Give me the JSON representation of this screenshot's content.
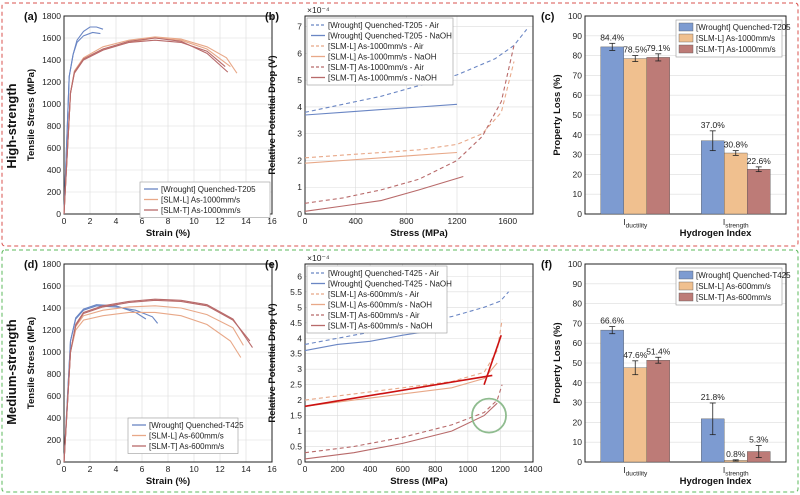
{
  "rows": [
    {
      "title": "High-strength",
      "frame_color": "#d9534f"
    },
    {
      "title": "Medium-strength",
      "frame_color": "#5cb85c"
    }
  ],
  "colors": {
    "wrought": "#6a86c4",
    "slm_l": "#e8a888",
    "slm_t": "#b86a6a",
    "wrought_bar": "#7d9bd1",
    "slm_l_bar": "#f0c08f",
    "slm_t_bar": "#bd7b77",
    "ppd_red": "#cc1111",
    "circle": "#8fbc8f"
  },
  "chart_data": [
    {
      "panel": "(a)",
      "type": "line",
      "xlabel": "Strain (%)",
      "ylabel": "Tensile Stress (MPa)",
      "xlim": [
        0,
        16
      ],
      "ylim": [
        0,
        1800
      ],
      "xticks": [
        "0",
        "2",
        "4",
        "6",
        "8",
        "10",
        "12",
        "14",
        "16"
      ],
      "yticks": [
        "0",
        "200",
        "400",
        "600",
        "800",
        "1000",
        "1200",
        "1400",
        "1600",
        "1800"
      ],
      "legend": [
        "[Wrought] Quenched-T205",
        "[SLM-L] As-1000mm/s",
        "[SLM-T] As-1000mm/s"
      ],
      "legend_position": "bottom-right",
      "series": [
        {
          "name": "[Wrought] Quenched-T205",
          "color_key": "wrought",
          "x": [
            0,
            0.4,
            0.7,
            1.0,
            1.5,
            2.0,
            2.5,
            3.0
          ],
          "y": [
            0,
            1250,
            1450,
            1580,
            1660,
            1700,
            1700,
            1680
          ]
        },
        {
          "name": "[Wrought] Quenched-T205",
          "color_key": "wrought",
          "x": [
            0,
            0.4,
            0.7,
            1.0,
            1.5,
            2.2,
            2.8
          ],
          "y": [
            0,
            1250,
            1450,
            1560,
            1620,
            1650,
            1640
          ]
        },
        {
          "name": "[SLM-L] As-1000mm/s",
          "color_key": "slm_l",
          "x": [
            0,
            0.5,
            0.8,
            1.5,
            3,
            5,
            7,
            9,
            11,
            12.5,
            13.3
          ],
          "y": [
            0,
            1100,
            1300,
            1420,
            1520,
            1580,
            1610,
            1590,
            1520,
            1420,
            1280
          ]
        },
        {
          "name": "[SLM-L] As-1000mm/s",
          "color_key": "slm_l",
          "x": [
            0,
            0.5,
            0.8,
            1.5,
            3,
            5,
            7,
            9,
            11,
            12.8
          ],
          "y": [
            0,
            1100,
            1290,
            1410,
            1500,
            1560,
            1600,
            1580,
            1500,
            1340
          ]
        },
        {
          "name": "[SLM-T] As-1000mm/s",
          "color_key": "slm_t",
          "x": [
            0,
            0.5,
            0.8,
            1.5,
            3,
            5,
            7,
            9,
            11,
            12.4
          ],
          "y": [
            0,
            1100,
            1280,
            1400,
            1490,
            1560,
            1580,
            1560,
            1480,
            1340
          ]
        },
        {
          "name": "[SLM-T] As-1000mm/s",
          "color_key": "slm_t",
          "x": [
            0,
            0.5,
            0.8,
            1.5,
            3,
            5,
            7,
            9,
            11,
            12.6
          ],
          "y": [
            0,
            1100,
            1290,
            1410,
            1500,
            1570,
            1600,
            1570,
            1460,
            1290
          ]
        }
      ]
    },
    {
      "panel": "(b)",
      "type": "line",
      "xlabel": "Stress (MPa)",
      "ylabel": "Relative Potential Drop (V)",
      "exponent_label": "×10⁻⁴",
      "xlim": [
        0,
        1800
      ],
      "ylim": [
        0,
        7.4
      ],
      "xticks": [
        "0",
        "400",
        "800",
        "1200",
        "1600"
      ],
      "yticks": [
        "0",
        "1",
        "2",
        "3",
        "4",
        "5",
        "6",
        "7"
      ],
      "legend": [
        "[Wrought] Quenched-T205 - Air",
        "[Wrought] Quenched-T205 - NaOH",
        "[SLM-L] As-1000mm/s - Air",
        "[SLM-L] As-1000mm/s - NaOH",
        "[SLM-T] As-1000mm/s - Air",
        "[SLM-T] As-1000mm/s - NaOH"
      ],
      "legend_position": "top-left",
      "series": [
        {
          "name": "[Wrought] Quenched-T205 - Air",
          "color_key": "wrought",
          "dashed": true,
          "x": [
            0,
            300,
            600,
            900,
            1200,
            1500,
            1650,
            1750
          ],
          "y": [
            3.8,
            4.1,
            4.4,
            4.8,
            5.2,
            5.8,
            6.3,
            6.9
          ]
        },
        {
          "name": "[Wrought] Quenched-T205 - NaOH",
          "color_key": "wrought",
          "dashed": false,
          "x": [
            0,
            300,
            600,
            900,
            1200
          ],
          "y": [
            3.7,
            3.8,
            3.9,
            4.0,
            4.1
          ]
        },
        {
          "name": "[SLM-L] As-1000mm/s - Air",
          "color_key": "slm_l",
          "dashed": true,
          "x": [
            0,
            300,
            600,
            900,
            1200,
            1400,
            1550,
            1650
          ],
          "y": [
            2.1,
            2.2,
            2.3,
            2.4,
            2.6,
            3.0,
            3.8,
            5.7
          ]
        },
        {
          "name": "[SLM-L] As-1000mm/s - NaOH",
          "color_key": "slm_l",
          "dashed": false,
          "x": [
            0,
            300,
            600,
            900,
            1200
          ],
          "y": [
            1.9,
            2.0,
            2.1,
            2.2,
            2.3
          ]
        },
        {
          "name": "[SLM-T] As-1000mm/s - Air",
          "color_key": "slm_t",
          "dashed": true,
          "x": [
            0,
            300,
            600,
            900,
            1200,
            1400,
            1550,
            1650
          ],
          "y": [
            0.4,
            0.6,
            0.9,
            1.3,
            2.0,
            2.9,
            4.2,
            6.3
          ]
        },
        {
          "name": "[SLM-T] As-1000mm/s - NaOH",
          "color_key": "slm_t",
          "dashed": false,
          "x": [
            0,
            300,
            600,
            900,
            1250
          ],
          "y": [
            0.1,
            0.3,
            0.5,
            0.9,
            1.4
          ]
        }
      ]
    },
    {
      "panel": "(c)",
      "type": "bar",
      "ylabel": "Property Loss (%)",
      "xlabel": "Hydrogen Index",
      "ylim": [
        0,
        100
      ],
      "yticks": [
        "0",
        "10",
        "20",
        "30",
        "40",
        "50",
        "60",
        "70",
        "80",
        "90",
        "100"
      ],
      "categories": [
        "I_ductility",
        "I_strength"
      ],
      "category_main": [
        "I",
        "I"
      ],
      "category_sub": [
        "ductility",
        "strength"
      ],
      "legend": [
        "[Wrought] Quenched-T205",
        "[SLM-L] As-1000mm/s",
        "[SLM-T] As-1000mm/s"
      ],
      "legend_position": "top-right",
      "series": [
        {
          "name": "[Wrought] Quenched-T205",
          "color_key": "wrought_bar",
          "values": [
            84.4,
            37.0
          ],
          "errors": [
            1.8,
            5.0
          ],
          "labels": [
            "84.4%",
            "37.0%"
          ]
        },
        {
          "name": "[SLM-L] As-1000mm/s",
          "color_key": "slm_l_bar",
          "values": [
            78.5,
            30.8
          ],
          "errors": [
            1.5,
            1.2
          ],
          "labels": [
            "78.5%",
            "30.8%"
          ]
        },
        {
          "name": "[SLM-T] As-1000mm/s",
          "color_key": "slm_t_bar",
          "values": [
            79.1,
            22.6
          ],
          "errors": [
            1.8,
            1.2
          ],
          "labels": [
            "79.1%",
            "22.6%"
          ]
        }
      ]
    },
    {
      "panel": "(d)",
      "type": "line",
      "xlabel": "Strain (%)",
      "ylabel": "Tensile Stress (MPa)",
      "xlim": [
        0,
        16
      ],
      "ylim": [
        0,
        1800
      ],
      "xticks": [
        "0",
        "2",
        "4",
        "6",
        "8",
        "10",
        "12",
        "14",
        "16"
      ],
      "yticks": [
        "0",
        "200",
        "400",
        "600",
        "800",
        "1000",
        "1200",
        "1400",
        "1600",
        "1800"
      ],
      "legend": [
        "[Wrought] Quenched-T425",
        "[SLM-L] As-600mm/s",
        "[SLM-T] As-600mm/s"
      ],
      "legend_position": "bottom-left",
      "series": [
        {
          "name": "[Wrought] Quenched-T425",
          "color_key": "wrought",
          "x": [
            0,
            0.5,
            0.9,
            1.5,
            2.5,
            4,
            5.5,
            6.8,
            7.2
          ],
          "y": [
            0,
            1100,
            1300,
            1380,
            1420,
            1410,
            1380,
            1320,
            1260
          ]
        },
        {
          "name": "[Wrought] Quenched-T425",
          "color_key": "wrought",
          "x": [
            0,
            0.5,
            0.9,
            1.5,
            2.5,
            4,
            5.5,
            6.3
          ],
          "y": [
            0,
            1100,
            1310,
            1390,
            1430,
            1420,
            1360,
            1300
          ]
        },
        {
          "name": "[SLM-L] As-600mm/s",
          "color_key": "slm_l",
          "x": [
            0,
            0.5,
            0.9,
            1.5,
            3,
            5,
            7,
            9,
            11,
            13,
            13.8
          ],
          "y": [
            0,
            1000,
            1230,
            1330,
            1380,
            1410,
            1420,
            1400,
            1340,
            1220,
            1060
          ]
        },
        {
          "name": "[SLM-L] As-600mm/s",
          "color_key": "slm_l",
          "x": [
            0,
            0.5,
            0.9,
            1.5,
            3,
            5,
            7,
            9,
            11,
            12.8,
            13.6
          ],
          "y": [
            0,
            1000,
            1200,
            1290,
            1330,
            1360,
            1360,
            1330,
            1250,
            1100,
            950
          ]
        },
        {
          "name": "[SLM-T] As-600mm/s",
          "color_key": "slm_t",
          "x": [
            0,
            0.5,
            0.9,
            1.5,
            3,
            5,
            7,
            9,
            11,
            13,
            14.3
          ],
          "y": [
            0,
            1000,
            1240,
            1350,
            1410,
            1450,
            1470,
            1460,
            1420,
            1290,
            1100
          ]
        },
        {
          "name": "[SLM-T] As-600mm/s",
          "color_key": "slm_t",
          "x": [
            0,
            0.5,
            0.9,
            1.5,
            3,
            5,
            7,
            9,
            11,
            13,
            14.5
          ],
          "y": [
            0,
            1000,
            1250,
            1360,
            1420,
            1460,
            1480,
            1470,
            1430,
            1300,
            1040
          ]
        }
      ]
    },
    {
      "panel": "(e)",
      "type": "line",
      "xlabel": "Stress (MPa)",
      "ylabel": "Relative Potential Drop (V)",
      "exponent_label": "×10⁻⁴",
      "xlim": [
        0,
        1400
      ],
      "ylim": [
        0,
        6.4
      ],
      "xticks": [
        "0",
        "200",
        "400",
        "600",
        "800",
        "1000",
        "1200",
        "1400"
      ],
      "yticks": [
        "0",
        "0.5",
        "1",
        "1.5",
        "2",
        "2.5",
        "3",
        "3.5",
        "4",
        "4.5",
        "5",
        "5.5",
        "6"
      ],
      "legend": [
        "[Wrought] Quenched-T425 - Air",
        "[Wrought] Quenched-T425 - NaOH",
        "[SLM-L] As-600mm/s - Air",
        "[SLM-L] As-600mm/s - NaOH",
        "[SLM-T] As-600mm/s - Air",
        "[SLM-T] As-600mm/s - NaOH"
      ],
      "legend_position": "top-left",
      "series": [
        {
          "name": "[Wrought] Quenched-T425 - Air",
          "color_key": "wrought",
          "dashed": true,
          "x": [
            0,
            300,
            600,
            900,
            1100,
            1200,
            1250
          ],
          "y": [
            3.8,
            4.1,
            4.4,
            4.7,
            5.0,
            5.2,
            5.5
          ]
        },
        {
          "name": "[Wrought] Quenched-T425 - NaOH",
          "color_key": "wrought",
          "dashed": false,
          "x": [
            0,
            200,
            400,
            600,
            850
          ],
          "y": [
            3.6,
            3.8,
            3.9,
            4.1,
            4.3
          ]
        },
        {
          "name": "[SLM-L] As-600mm/s - Air",
          "color_key": "slm_l",
          "dashed": true,
          "x": [
            0,
            300,
            600,
            900,
            1100,
            1180,
            1210
          ],
          "y": [
            2.0,
            2.2,
            2.4,
            2.6,
            2.9,
            3.6,
            4.6
          ]
        },
        {
          "name": "[SLM-L] As-600mm/s - NaOH",
          "color_key": "slm_l",
          "dashed": false,
          "x": [
            0,
            300,
            600,
            900,
            1100,
            1180
          ],
          "y": [
            1.8,
            2.0,
            2.2,
            2.4,
            2.7,
            3.2
          ]
        },
        {
          "name": "[SLM-T] As-600mm/s - Air",
          "color_key": "slm_t",
          "dashed": true,
          "x": [
            0,
            300,
            600,
            900,
            1100,
            1180,
            1210
          ],
          "y": [
            0.3,
            0.5,
            0.8,
            1.2,
            1.6,
            2.0,
            2.5
          ]
        },
        {
          "name": "[SLM-T] As-600mm/s - NaOH",
          "color_key": "slm_t",
          "dashed": false,
          "x": [
            0,
            300,
            600,
            900,
            1100,
            1180
          ],
          "y": [
            0.1,
            0.3,
            0.6,
            1.0,
            1.5,
            1.9
          ]
        },
        {
          "name": "",
          "color_key": "ppd_red",
          "dashed": false,
          "thick": true,
          "x": [
            0,
            1150
          ],
          "y": [
            1.8,
            2.8
          ]
        },
        {
          "name": "",
          "color_key": "ppd_red",
          "dashed": false,
          "thick": true,
          "x": [
            1100,
            1205
          ],
          "y": [
            2.5,
            4.1
          ]
        }
      ],
      "circle": {
        "x": 1130,
        "y": 1.5
      }
    },
    {
      "panel": "(f)",
      "type": "bar",
      "ylabel": "Property Loss (%)",
      "xlabel": "Hydrogen Index",
      "ylim": [
        0,
        100
      ],
      "yticks": [
        "0",
        "10",
        "20",
        "30",
        "40",
        "50",
        "60",
        "70",
        "80",
        "90",
        "100"
      ],
      "categories": [
        "I_ductility",
        "I_strength"
      ],
      "category_main": [
        "I",
        "I"
      ],
      "category_sub": [
        "ductility",
        "strength"
      ],
      "legend": [
        "[Wrought] Quenched-T425",
        "[SLM-L] As-600mm/s",
        "[SLM-T] As-600mm/s"
      ],
      "legend_position": "top-right",
      "series": [
        {
          "name": "[Wrought] Quenched-T425",
          "color_key": "wrought_bar",
          "values": [
            66.6,
            21.8
          ],
          "errors": [
            1.8,
            8.0
          ],
          "labels": [
            "66.6%",
            "21.8%"
          ]
        },
        {
          "name": "[SLM-L] As-600mm/s",
          "color_key": "slm_l_bar",
          "values": [
            47.6,
            0.8
          ],
          "errors": [
            3.5,
            0.3
          ],
          "labels": [
            "47.6%",
            "0.8%"
          ]
        },
        {
          "name": "[SLM-T] As-600mm/s",
          "color_key": "slm_t_bar",
          "values": [
            51.4,
            5.3
          ],
          "errors": [
            1.5,
            3.0
          ],
          "labels": [
            "51.4%",
            "5.3%"
          ]
        }
      ]
    }
  ]
}
